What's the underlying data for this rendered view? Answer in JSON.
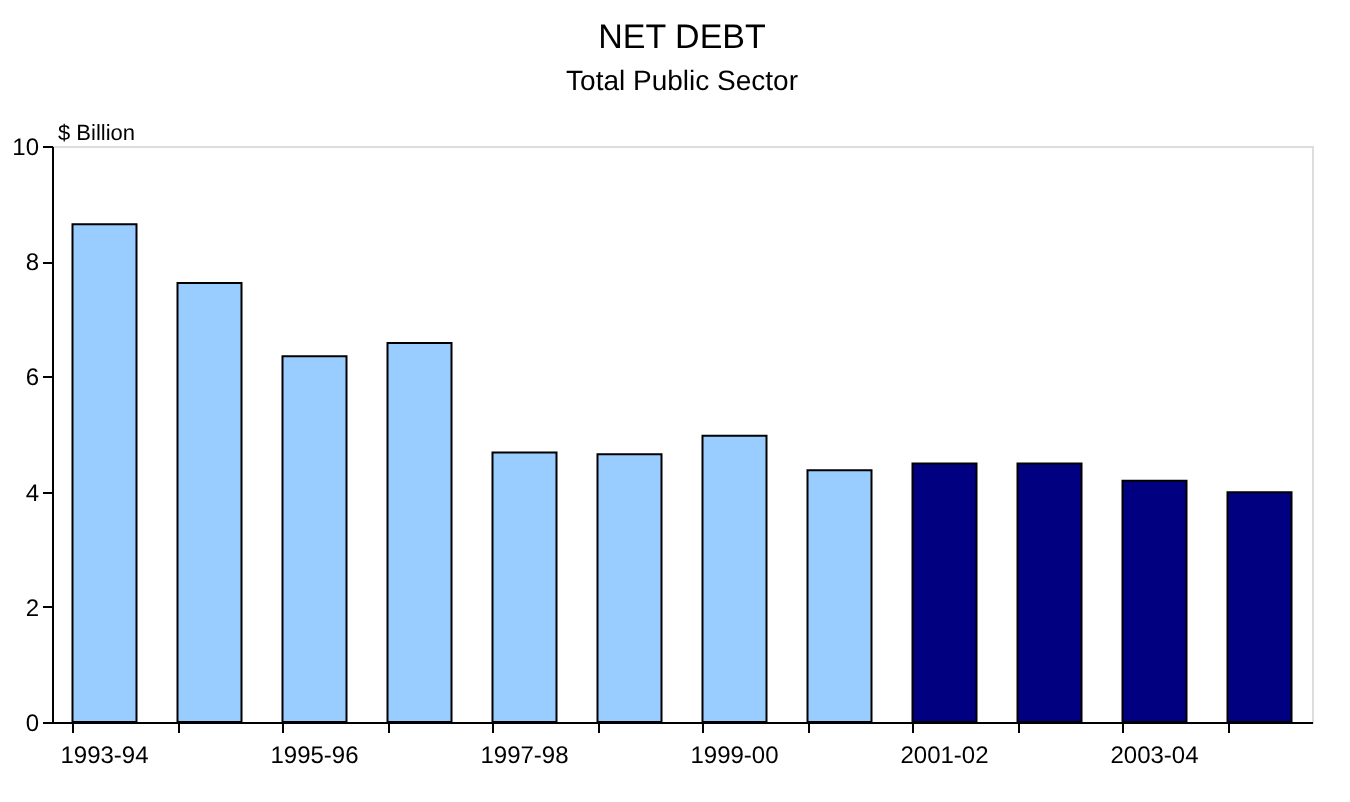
{
  "chart_data": {
    "type": "bar",
    "title": "NET DEBT",
    "subtitle": "Total Public Sector",
    "ylabel": "$ Billion",
    "categories": [
      "1993-94",
      null,
      "1995-96",
      null,
      "1997-98",
      null,
      "1999-00",
      null,
      "2001-02",
      null,
      "2003-04",
      null
    ],
    "values": [
      8.64,
      7.62,
      6.35,
      6.58,
      4.68,
      4.65,
      4.97,
      4.37,
      4.49,
      4.49,
      4.19,
      3.99
    ],
    "colors": [
      "#99ccff",
      "#99ccff",
      "#99ccff",
      "#99ccff",
      "#99ccff",
      "#99ccff",
      "#99ccff",
      "#99ccff",
      "#000080",
      "#000080",
      "#000080",
      "#000080"
    ],
    "ylim": [
      0,
      10
    ],
    "yticks": [
      0,
      2,
      4,
      6,
      8,
      10
    ],
    "grid": false
  }
}
